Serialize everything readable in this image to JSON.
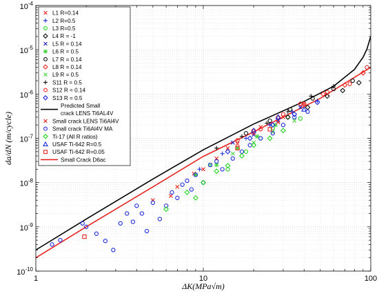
{
  "chart_data": {
    "type": "scatter",
    "xscale": "log",
    "yscale": "log",
    "xlim": [
      1,
      100
    ],
    "ylim": [
      1e-10,
      0.0001
    ],
    "grid": "major and minor, dotted",
    "legend_position": "top-left (inside axes)",
    "xlabel": "ΔK(MPa√m)",
    "ylabel": "da/dN (m/cycle)",
    "x_ticks": [
      1,
      10,
      100
    ],
    "x_tick_labels": [
      "1",
      "10",
      "100"
    ],
    "y_ticks": [
      1e-10,
      1e-09,
      1e-08,
      1e-07,
      1e-06,
      1e-05,
      0.0001
    ],
    "y_tick_labels": [
      {
        "base": "10",
        "exp": "-10"
      },
      {
        "base": "10",
        "exp": "-9"
      },
      {
        "base": "10",
        "exp": "-8"
      },
      {
        "base": "10",
        "exp": "-7"
      },
      {
        "base": "10",
        "exp": "-6"
      },
      {
        "base": "10",
        "exp": "-5"
      },
      {
        "base": "10",
        "exp": "-4"
      }
    ],
    "series": [
      {
        "name": "L1 R=0.14",
        "marker": "x",
        "color": "#e8231e",
        "points": [
          [
            6.4,
            5e-09
          ],
          [
            8.8,
            1.6e-08
          ],
          [
            12,
            3.5e-08
          ],
          [
            16,
            7.5e-08
          ],
          [
            22,
            1.8e-07
          ],
          [
            30,
            3e-07
          ],
          [
            40,
            6e-07
          ],
          [
            55,
            1e-06
          ]
        ]
      },
      {
        "name": "L2 R=0.5",
        "marker": "+",
        "color": "#1c2bdc",
        "points": [
          [
            9.5,
            2e-08
          ],
          [
            13,
            4.5e-08
          ],
          [
            18,
            1e-07
          ],
          [
            25,
            2e-07
          ],
          [
            34,
            4e-07
          ],
          [
            48,
            7e-07
          ]
        ]
      },
      {
        "name": "L3 R=0.5",
        "marker": "circle",
        "color": "#22d41f",
        "points": [
          [
            14,
            2e-08
          ],
          [
            18,
            5e-08
          ],
          [
            22,
            1e-07
          ],
          [
            26,
            1.7e-07
          ],
          [
            32,
            3e-07
          ],
          [
            38,
            2.8e-07
          ]
        ]
      },
      {
        "name": "L4 R = -1",
        "marker": "diamond",
        "color": "#111111",
        "points": [
          [
            32,
            3e-07
          ],
          [
            42,
            5e-07
          ],
          [
            55,
            9e-07
          ],
          [
            68,
            1.2e-06
          ],
          [
            85,
            1.8e-06
          ]
        ]
      },
      {
        "name": "L5 R = 0.14",
        "marker": "x",
        "color": "#2020c8",
        "points": [
          [
            15,
            8e-08
          ],
          [
            20,
            1.2e-07
          ],
          [
            28,
            2.5e-07
          ],
          [
            38,
            5e-07
          ]
        ]
      },
      {
        "name": "L6 R = 0.5",
        "marker": "star",
        "color": "#46d43c",
        "points": [
          [
            9,
            1.5e-08
          ],
          [
            12,
            2.5e-08
          ],
          [
            16,
            6e-08
          ],
          [
            21,
            1.1e-07
          ],
          [
            27,
            2e-07
          ]
        ]
      },
      {
        "name": "L7 R = 0.14",
        "marker": "circle",
        "color": "#111111",
        "points": [
          [
            18,
            1.3e-07
          ],
          [
            25,
            2.5e-07
          ],
          [
            33,
            4.5e-07
          ],
          [
            45,
            8e-07
          ],
          [
            60,
            1.3e-06
          ],
          [
            78,
            2e-06
          ]
        ]
      },
      {
        "name": "L8 R = 0.14",
        "marker": "diamond",
        "color": "#e8231e",
        "points": [
          [
            20,
            1.5e-07
          ],
          [
            28,
            3e-07
          ],
          [
            38,
            6e-07
          ],
          [
            52,
            1e-06
          ],
          [
            70,
            1.6e-06
          ],
          [
            90,
            3e-06
          ]
        ]
      },
      {
        "name": "L9 R = 0.5",
        "marker": "x",
        "color": "#46d43c",
        "points": [
          [
            11,
            2.5e-08
          ],
          [
            15,
            4.5e-08
          ],
          [
            20,
            8e-08
          ],
          [
            26,
            1.4e-07
          ],
          [
            35,
            2.5e-07
          ]
        ]
      },
      {
        "name": "S11 R = 0.5",
        "marker": "+",
        "color": "#111111",
        "points": [
          [
            12,
            6e-08
          ],
          [
            17,
            1.1e-07
          ],
          [
            24,
            2.2e-07
          ],
          [
            32,
            4e-07
          ],
          [
            44,
            9e-07
          ],
          [
            60,
            1.5e-06
          ]
        ]
      },
      {
        "name": "S12 R = 0.14",
        "marker": "circle",
        "color": "#e8231e",
        "points": [
          [
            16,
            9e-08
          ],
          [
            22,
            1.6e-07
          ],
          [
            30,
            3.5e-07
          ],
          [
            40,
            6e-07
          ],
          [
            55,
            1.1e-06
          ],
          [
            75,
            1.7e-06
          ],
          [
            95,
            4e-06
          ]
        ]
      },
      {
        "name": "S13 R = 0.5",
        "marker": "diamond",
        "color": "#1c2bdc",
        "points": [
          [
            14,
            5e-08
          ],
          [
            19,
            1e-07
          ],
          [
            26,
            2e-07
          ],
          [
            35,
            3.5e-07
          ],
          [
            48,
            6.5e-07
          ]
        ]
      },
      {
        "name": "Small crack LENS Ti6Al4V",
        "marker": "x",
        "color": "#e8231e",
        "points": [
          [
            5,
            4e-09
          ],
          [
            7,
            8e-09
          ],
          [
            10,
            2e-08
          ],
          [
            14,
            6e-08
          ],
          [
            20,
            1.3e-07
          ],
          [
            28,
            2.3e-07
          ]
        ]
      },
      {
        "name": "Small crack Ti6Al4V MA",
        "marker": "circle",
        "color": "#1c2bdc",
        "points": [
          [
            1.25,
            4e-10
          ],
          [
            1.4,
            5e-10
          ],
          [
            1.9,
            1.2e-09
          ],
          [
            2.0,
            1e-09
          ],
          [
            2.3,
            7e-10
          ],
          [
            2.6,
            4.8e-10
          ],
          [
            2.9,
            3e-10
          ],
          [
            3.2,
            1.2e-09
          ],
          [
            3.5,
            2e-09
          ],
          [
            3.8,
            1.3e-09
          ],
          [
            4.0,
            3e-09
          ],
          [
            4.3,
            2e-09
          ],
          [
            4.6,
            8e-10
          ],
          [
            5.0,
            3.5e-09
          ],
          [
            5.5,
            1.5e-09
          ],
          [
            6.0,
            3e-09
          ],
          [
            6.5,
            6e-09
          ],
          [
            7.0,
            4.5e-09
          ],
          [
            7.5,
            9e-09
          ],
          [
            8.0,
            1.1e-08
          ],
          [
            8.5,
            7e-09
          ],
          [
            9.0,
            1.5e-08
          ],
          [
            10,
            1e-08
          ],
          [
            11,
            2.5e-08
          ],
          [
            12,
            3e-08
          ],
          [
            13,
            2e-08
          ],
          [
            15,
            3.5e-08
          ],
          [
            17,
            5e-08
          ],
          [
            19,
            7e-08
          ],
          [
            22,
            1e-07
          ],
          [
            26,
            1.3e-07
          ],
          [
            30,
            2e-07
          ],
          [
            35,
            3e-07
          ],
          [
            42,
            4e-07
          ]
        ]
      },
      {
        "name": "Ti-17 (All R ratios)",
        "marker": "diamond",
        "color": "#22d41f",
        "points": [
          [
            6,
            2.5e-09
          ],
          [
            8,
            6e-09
          ],
          [
            9,
            4.5e-09
          ],
          [
            10,
            1e-08
          ],
          [
            12,
            1.8e-08
          ],
          [
            14,
            2.4e-08
          ],
          [
            17,
            4e-08
          ],
          [
            20,
            7e-08
          ],
          [
            25,
            1e-07
          ],
          [
            30,
            1.5e-07
          ]
        ]
      },
      {
        "name": "USAF Ti-642 R=0.5",
        "marker": "triangle",
        "color": "#1c2bdc",
        "points": [
          [
            20,
            1.5e-07
          ],
          [
            28,
            3e-07
          ],
          [
            40,
            4.5e-07
          ]
        ]
      },
      {
        "name": "USAF Ti-642 R=0.05",
        "marker": "square",
        "color": "#e8231e",
        "points": [
          [
            1.95,
            6e-10
          ],
          [
            16,
            6e-08
          ],
          [
            25,
            1.6e-07
          ]
        ]
      }
    ],
    "lines": [
      {
        "name": "Predicted Small crack LENS Ti6AL4V",
        "color": "#000000",
        "points": [
          [
            1,
            3e-10
          ],
          [
            2,
            1.5e-09
          ],
          [
            5,
            1.2e-08
          ],
          [
            10,
            5.5e-08
          ],
          [
            20,
            2.1e-07
          ],
          [
            40,
            6.8e-07
          ],
          [
            60,
            1.5e-06
          ],
          [
            80,
            3.6e-06
          ],
          [
            90,
            6.8e-06
          ],
          [
            95,
            1.05e-05
          ],
          [
            100,
            2e-05
          ]
        ]
      },
      {
        "name": "Small Crack D6ac",
        "color": "#e8231e",
        "points": [
          [
            1,
            2e-10
          ],
          [
            2,
            1e-09
          ],
          [
            5,
            8e-09
          ],
          [
            10,
            3.9e-08
          ],
          [
            20,
            1.4e-07
          ],
          [
            50,
            8e-07
          ],
          [
            100,
            4e-06
          ]
        ]
      }
    ],
    "legend": [
      {
        "label": "L1 R=0.14",
        "kind": "marker",
        "marker": "x",
        "color": "#e8231e"
      },
      {
        "label": "L2 R=0.5",
        "kind": "marker",
        "marker": "+",
        "color": "#1c2bdc"
      },
      {
        "label": "L3 R=0.5",
        "kind": "marker",
        "marker": "circle",
        "color": "#22d41f"
      },
      {
        "label": "L4 R = -1",
        "kind": "marker",
        "marker": "diamond",
        "color": "#111111"
      },
      {
        "label": "L5 R = 0.14",
        "kind": "marker",
        "marker": "x",
        "color": "#2020c8"
      },
      {
        "label": "L6 R = 0.5",
        "kind": "marker",
        "marker": "star",
        "color": "#46d43c"
      },
      {
        "label": "L7 R = 0.14",
        "kind": "marker",
        "marker": "circle",
        "color": "#111111"
      },
      {
        "label": "L8 R = 0.14",
        "kind": "marker",
        "marker": "diamond",
        "color": "#e8231e"
      },
      {
        "label": "L9 R = 0.5",
        "kind": "marker",
        "marker": "x",
        "color": "#46d43c"
      },
      {
        "label": "S11 R = 0.5",
        "kind": "marker",
        "marker": "+",
        "color": "#111111"
      },
      {
        "label": "S12 R = 0.14",
        "kind": "marker",
        "marker": "circle",
        "color": "#e8231e"
      },
      {
        "label": "S13 R = 0.5",
        "kind": "marker",
        "marker": "diamond",
        "color": "#1c2bdc"
      },
      {
        "label": "Predicted Small\ncrack LENS Ti6AL4V",
        "kind": "line",
        "color": "#000000"
      },
      {
        "label": "Small crack LENS Ti6Al4V",
        "kind": "marker",
        "marker": "x",
        "color": "#e8231e"
      },
      {
        "label": "Small crack Ti6Al4V MA",
        "kind": "marker",
        "marker": "circle",
        "color": "#1c2bdc"
      },
      {
        "label": "Ti-17 (All R ratios)",
        "kind": "marker",
        "marker": "diamond",
        "color": "#22d41f"
      },
      {
        "label": "USAF Ti-642 R=0.5",
        "kind": "marker",
        "marker": "triangle",
        "color": "#1c2bdc"
      },
      {
        "label": "USAF Ti-642 R=0.05",
        "kind": "marker",
        "marker": "square",
        "color": "#e8231e"
      },
      {
        "label": "Small Crack D6ac",
        "kind": "line",
        "color": "#e8231e"
      }
    ]
  }
}
